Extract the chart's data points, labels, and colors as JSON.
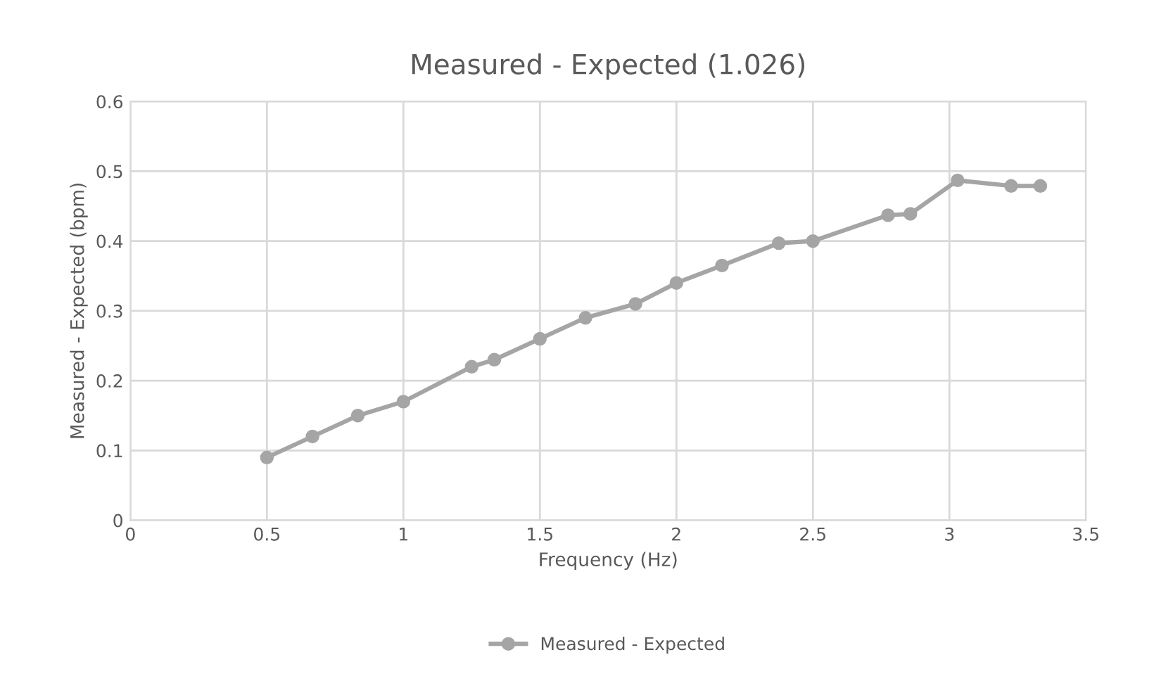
{
  "chart_data": {
    "type": "line",
    "title": "Measured - Expected (1.026)",
    "xlabel": "Frequency (Hz)",
    "ylabel": "Measured - Expected (bpm)",
    "xlim": [
      0,
      3.5
    ],
    "xticks": [
      0,
      0.5,
      1,
      1.5,
      2,
      2.5,
      3,
      3.5
    ],
    "ylim": [
      0,
      0.6
    ],
    "yticks": [
      0,
      0.1,
      0.2,
      0.3,
      0.4,
      0.5,
      0.6
    ],
    "grid": true,
    "legend": "bottom",
    "marker": "circle",
    "line_style": "solid",
    "series": [
      {
        "name": "Measured - Expected",
        "color": "#a5a5a5",
        "x": [
          0.5,
          0.667,
          0.833,
          1,
          1.25,
          1.333,
          1.5,
          1.667,
          1.85,
          2,
          2.167,
          2.375,
          2.5,
          2.775,
          2.857,
          3.03,
          3.226,
          3.333
        ],
        "values": [
          0.09,
          0.12,
          0.15,
          0.17,
          0.22,
          0.23,
          0.26,
          0.29,
          0.31,
          0.34,
          0.365,
          0.397,
          0.4,
          0.437,
          0.439,
          0.487,
          0.479,
          0.479
        ]
      }
    ]
  }
}
